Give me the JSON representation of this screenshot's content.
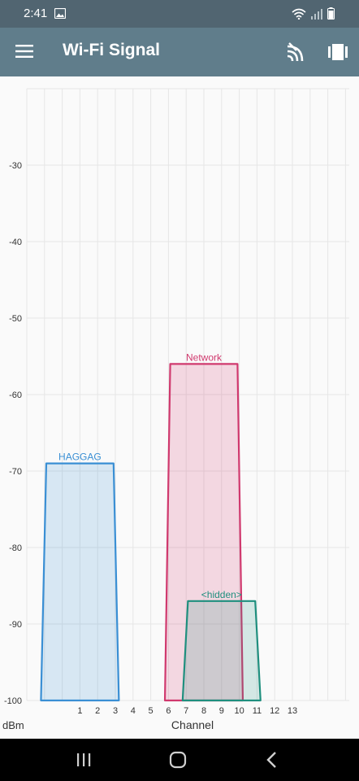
{
  "status_bar": {
    "time": "2:41",
    "icons": [
      "photo-icon",
      "wifi-signal-icon",
      "cell-signal-icon",
      "battery-icon"
    ]
  },
  "app_bar": {
    "title": "Wi-Fi Signal",
    "icons": [
      "menu-icon",
      "wifi-scan-icon",
      "view-toggle-icon"
    ]
  },
  "colors": {
    "status_bar": "#516571",
    "app_bar": "#607d8b",
    "haggag": "#3a8fd4",
    "network": "#d0396e",
    "hidden": "#1f8f7e",
    "grid": "#e6e6e6",
    "axis_text": "#333333"
  },
  "chart_data": {
    "type": "area",
    "xlabel": "Channel",
    "ylabel": "dBm",
    "x_ticks": [
      1,
      2,
      3,
      4,
      5,
      6,
      7,
      8,
      9,
      10,
      11,
      12,
      13
    ],
    "y_ticks": [
      -30,
      -40,
      -50,
      -60,
      -70,
      -80,
      -90,
      -100
    ],
    "ylim": [
      -100,
      -20
    ],
    "xlim": [
      -2,
      16
    ],
    "grid": true,
    "series": [
      {
        "name": "HAGGAG",
        "channel": 1,
        "signal": -69,
        "color": "#3a8fd4"
      },
      {
        "name": "Network",
        "channel": 8,
        "signal": -56,
        "color": "#d0396e"
      },
      {
        "name": "<hidden>",
        "channel": 9,
        "signal": -87,
        "color": "#1f8f7e"
      }
    ]
  },
  "nav_bar": {
    "buttons": [
      "recent-apps-icon",
      "home-icon",
      "back-icon"
    ]
  }
}
